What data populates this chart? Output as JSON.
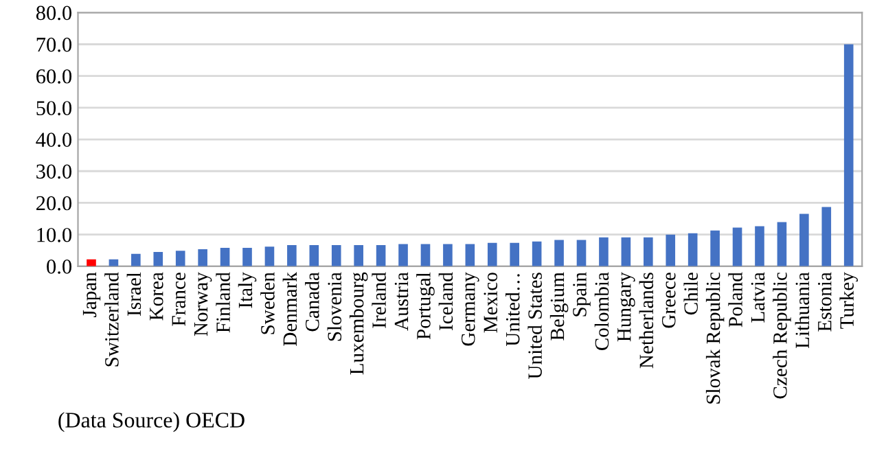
{
  "chart_data": {
    "type": "bar",
    "categories": [
      "Japan",
      "Switzerland",
      "Israel",
      "Korea",
      "France",
      "Norway",
      "Finland",
      "Italy",
      "Sweden",
      "Denmark",
      "Canada",
      "Slovenia",
      "Luxembourg",
      "Ireland",
      "Austria",
      "Portugal",
      "Iceland",
      "Germany",
      "Mexico",
      "United…",
      "United States",
      "Belgium",
      "Spain",
      "Colombia",
      "Hungary",
      "Netherlands",
      "Greece",
      "Chile",
      "Slovak Republic",
      "Poland",
      "Latvia",
      "Czech Republic",
      "Lithuania",
      "Estonia",
      "Turkey"
    ],
    "values": [
      2.2,
      2.2,
      3.9,
      4.5,
      4.9,
      5.4,
      5.8,
      5.8,
      6.2,
      6.7,
      6.7,
      6.7,
      6.7,
      6.7,
      7.0,
      7.0,
      7.0,
      7.0,
      7.4,
      7.4,
      7.8,
      8.3,
      8.3,
      9.1,
      9.1,
      9.1,
      10.0,
      10.4,
      11.3,
      12.2,
      12.6,
      13.9,
      16.5,
      18.7,
      70.0
    ],
    "colors": [
      "#ff0000",
      "#4472c4",
      "#4472c4",
      "#4472c4",
      "#4472c4",
      "#4472c4",
      "#4472c4",
      "#4472c4",
      "#4472c4",
      "#4472c4",
      "#4472c4",
      "#4472c4",
      "#4472c4",
      "#4472c4",
      "#4472c4",
      "#4472c4",
      "#4472c4",
      "#4472c4",
      "#4472c4",
      "#4472c4",
      "#4472c4",
      "#4472c4",
      "#4472c4",
      "#4472c4",
      "#4472c4",
      "#4472c4",
      "#4472c4",
      "#4472c4",
      "#4472c4",
      "#4472c4",
      "#4472c4",
      "#4472c4",
      "#4472c4",
      "#4472c4",
      "#4472c4"
    ],
    "ylim": [
      0,
      80
    ],
    "yticks": [
      {
        "value": 0,
        "label": "0.0"
      },
      {
        "value": 10,
        "label": "10.0"
      },
      {
        "value": 20,
        "label": "20.0"
      },
      {
        "value": 30,
        "label": "30.0"
      },
      {
        "value": 40,
        "label": "40.0"
      },
      {
        "value": 50,
        "label": "50.0"
      },
      {
        "value": 60,
        "label": "60.0"
      },
      {
        "value": 70,
        "label": "70.0"
      },
      {
        "value": 80,
        "label": "80.0"
      }
    ],
    "grid": "y",
    "legend": false,
    "annotations": [
      "(Data Source) OECD"
    ]
  }
}
